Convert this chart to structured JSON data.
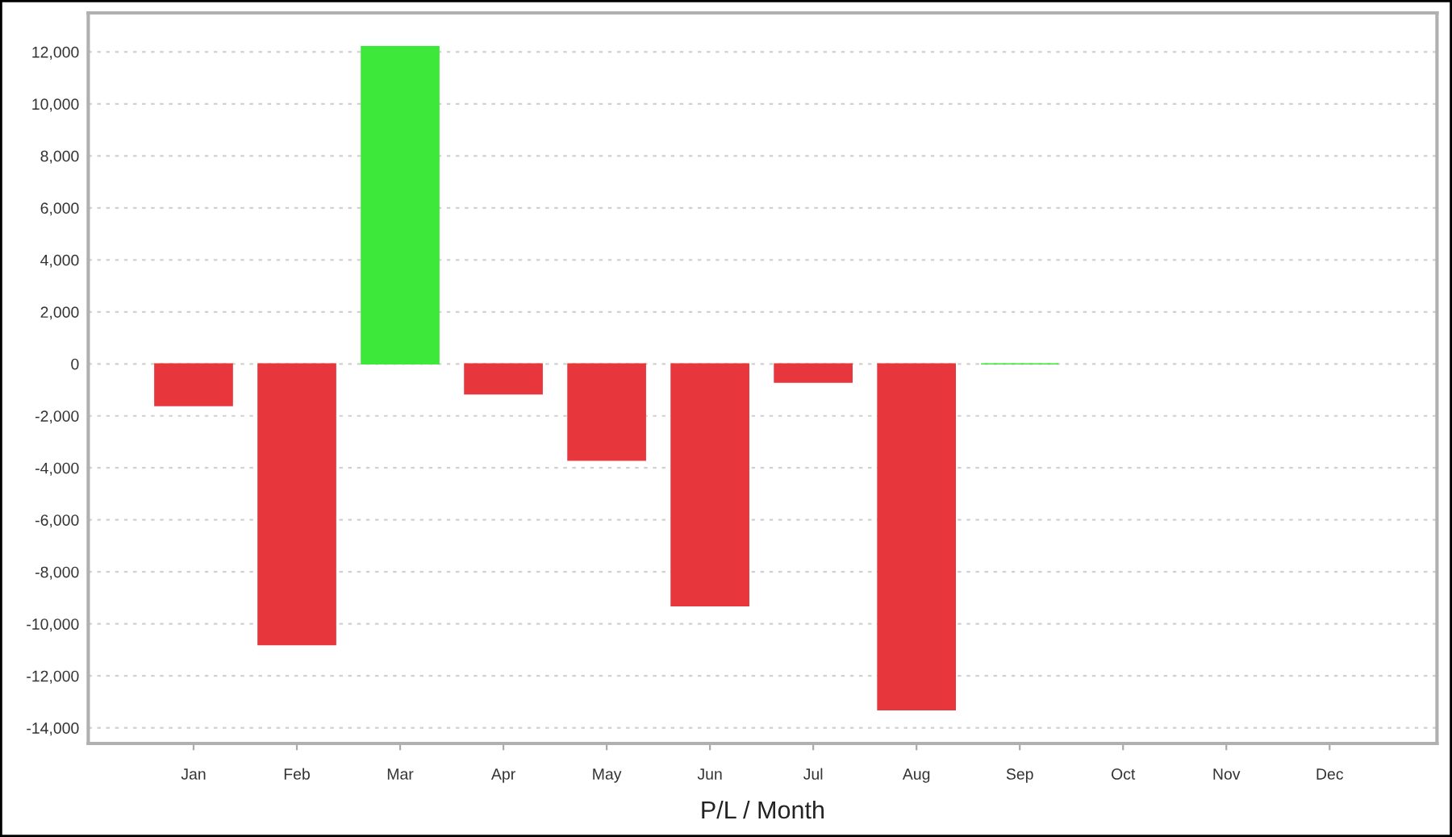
{
  "chart_data": {
    "type": "bar",
    "xlabel": "P/L / Month",
    "categories": [
      "Jan",
      "Feb",
      "Mar",
      "Apr",
      "May",
      "Jun",
      "Jul",
      "Aug",
      "Sep",
      "Oct",
      "Nov",
      "Dec"
    ],
    "values": [
      -1600,
      -10800,
      12200,
      -1150,
      -3700,
      -9300,
      -700,
      -13300,
      0,
      null,
      null,
      null
    ],
    "colors": [
      "#e8373c",
      "#e8373c",
      "#3de83a",
      "#e8373c",
      "#e8373c",
      "#e8373c",
      "#e8373c",
      "#e8373c",
      "#3de83a",
      "#e8373c",
      "#e8373c",
      "#e8373c"
    ],
    "ylim": [
      -14600,
      13500
    ],
    "yticks": [
      {
        "value": -14000,
        "label": "-14,000"
      },
      {
        "value": -12000,
        "label": "-12,000"
      },
      {
        "value": -10000,
        "label": "-10,000"
      },
      {
        "value": -8000,
        "label": "-8,000"
      },
      {
        "value": -6000,
        "label": "-6,000"
      },
      {
        "value": -4000,
        "label": "-4,000"
      },
      {
        "value": -2000,
        "label": "-2,000"
      },
      0,
      {
        "value": 2000,
        "label": "2,000"
      },
      {
        "value": 4000,
        "label": "4,000"
      },
      {
        "value": 6000,
        "label": "6,000"
      },
      {
        "value": 8000,
        "label": "8,000"
      },
      {
        "value": 10000,
        "label": "10,000"
      },
      {
        "value": 12000,
        "label": "12,000"
      }
    ],
    "grid": "y"
  }
}
